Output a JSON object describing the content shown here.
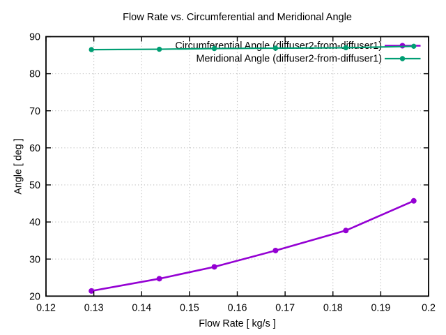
{
  "chart_data": {
    "type": "line",
    "title": "Flow Rate vs. Circumferential and Meridional Angle",
    "xlabel": "Flow Rate [ kg/s ]",
    "ylabel": "Angle [ deg ]",
    "xlim": [
      0.12,
      0.2
    ],
    "ylim": [
      20,
      90
    ],
    "x_ticks": [
      "0.12",
      "0.13",
      "0.14",
      "0.15",
      "0.16",
      "0.17",
      "0.18",
      "0.19",
      "0.2"
    ],
    "y_ticks": [
      "20",
      "30",
      "40",
      "50",
      "60",
      "70",
      "80",
      "90"
    ],
    "grid": true,
    "grid_style": "dotted",
    "legend_position": "top-right-inside",
    "series": [
      {
        "name": "Circumferential Angle (diffuser2-from-diffuser1)",
        "color": "#9400d3",
        "marker": "circle",
        "x": [
          0.1295,
          0.1437,
          0.1552,
          0.168,
          0.1827,
          0.1969
        ],
        "y": [
          21.4,
          24.7,
          27.9,
          32.3,
          37.7,
          45.7
        ]
      },
      {
        "name": "Meridional Angle (diffuser2-from-diffuser1)",
        "color": "#009e73",
        "marker": "circle",
        "x": [
          0.1295,
          0.1437,
          0.1552,
          0.168,
          0.1827,
          0.1969
        ],
        "y": [
          86.5,
          86.6,
          86.8,
          86.9,
          87.0,
          87.4
        ]
      }
    ]
  },
  "colors": {
    "background": "#ffffff",
    "border": "#000000",
    "grid": "#bdbdbd",
    "text": "#000000"
  }
}
